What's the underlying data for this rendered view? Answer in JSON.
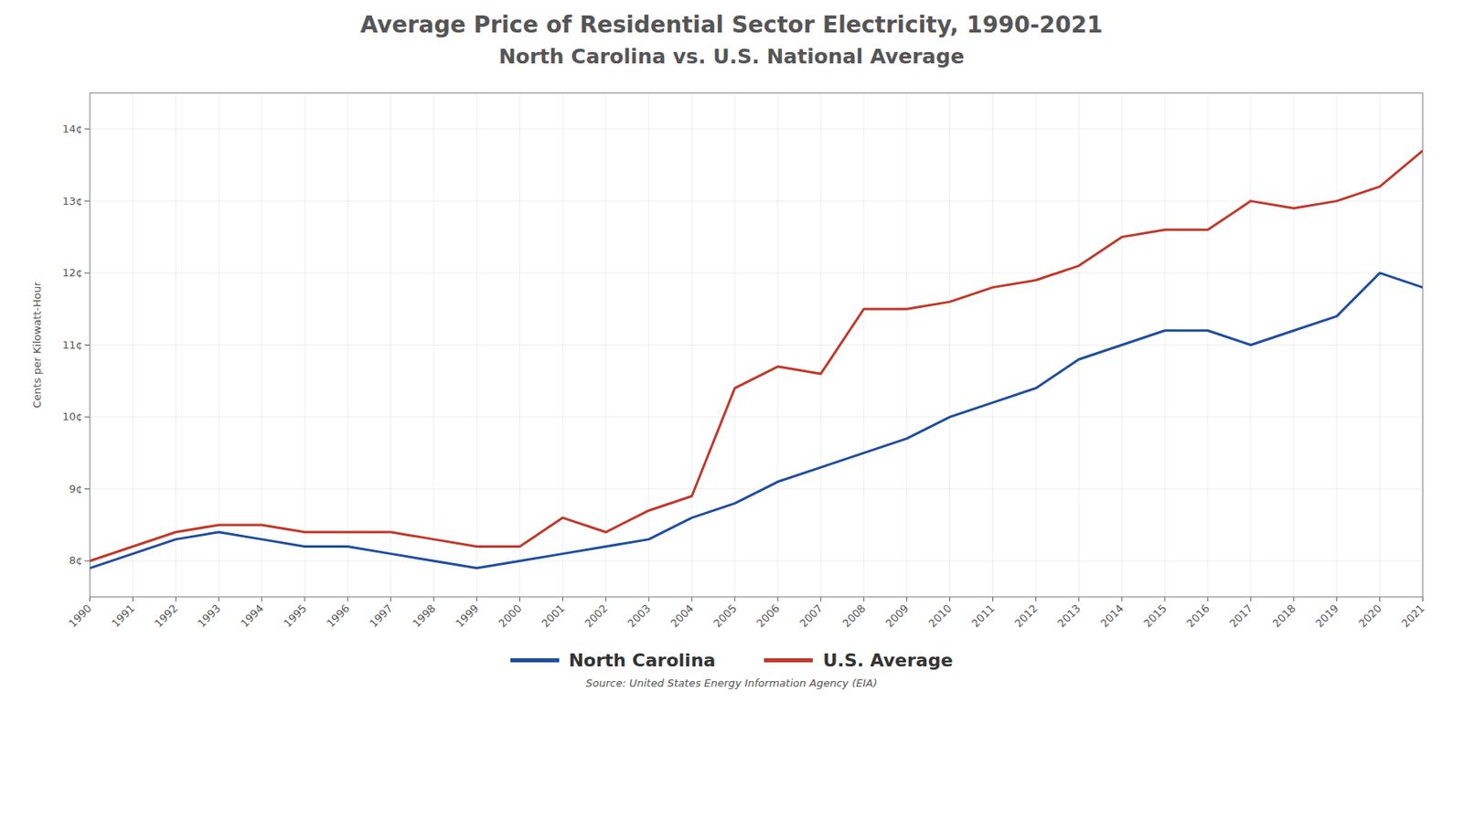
{
  "chart_data": {
    "type": "line",
    "title": "Average Price of Residential Sector Electricity, 1990-2021",
    "subtitle": "North Carolina vs. U.S. National Average",
    "ylabel": "Cents per Kilowatt-Hour",
    "source": "Source: United States Energy Information Agency (EIA)",
    "x": [
      1990,
      1991,
      1992,
      1993,
      1994,
      1995,
      1996,
      1997,
      1998,
      1999,
      2000,
      2001,
      2002,
      2003,
      2004,
      2005,
      2006,
      2007,
      2008,
      2009,
      2010,
      2011,
      2012,
      2013,
      2014,
      2015,
      2016,
      2017,
      2018,
      2019,
      2020,
      2021
    ],
    "series": [
      {
        "name": "North Carolina",
        "color": "#1f4e9c",
        "values": [
          7.9,
          8.1,
          8.3,
          8.4,
          8.3,
          8.2,
          8.2,
          8.1,
          8.0,
          7.9,
          8.0,
          8.1,
          8.2,
          8.3,
          8.6,
          8.8,
          9.1,
          9.3,
          9.5,
          9.7,
          10.0,
          10.2,
          10.4,
          10.8,
          11.0,
          11.2,
          11.2,
          11.0,
          11.2,
          11.4,
          12.0,
          11.8
        ]
      },
      {
        "name": "U.S. Average",
        "color": "#c0392b",
        "values": [
          8.0,
          8.2,
          8.4,
          8.5,
          8.5,
          8.4,
          8.4,
          8.4,
          8.3,
          8.2,
          8.2,
          8.6,
          8.4,
          8.7,
          8.9,
          10.4,
          10.7,
          10.6,
          11.5,
          11.5,
          11.6,
          11.8,
          11.9,
          12.1,
          12.5,
          12.6,
          12.6,
          13.0,
          12.9,
          13.0,
          13.2,
          13.7
        ]
      }
    ],
    "xlim": [
      1990,
      2021
    ],
    "xticks": [
      1990,
      1991,
      1992,
      1993,
      1994,
      1995,
      1996,
      1997,
      1998,
      1999,
      2000,
      2001,
      2002,
      2003,
      2004,
      2005,
      2006,
      2007,
      2008,
      2009,
      2010,
      2011,
      2012,
      2013,
      2014,
      2015,
      2016,
      2017,
      2018,
      2019,
      2020,
      2021
    ],
    "ylim": [
      7.5,
      14.5
    ],
    "yticks": [
      {
        "value": 8,
        "label": "8¢"
      },
      {
        "value": 9,
        "label": "9¢"
      },
      {
        "value": 10,
        "label": "10¢"
      },
      {
        "value": 11,
        "label": "11¢"
      },
      {
        "value": 12,
        "label": "12¢"
      },
      {
        "value": 13,
        "label": "13¢"
      },
      {
        "value": 14,
        "label": "14¢"
      }
    ],
    "grid": true,
    "legend": "bottom"
  }
}
